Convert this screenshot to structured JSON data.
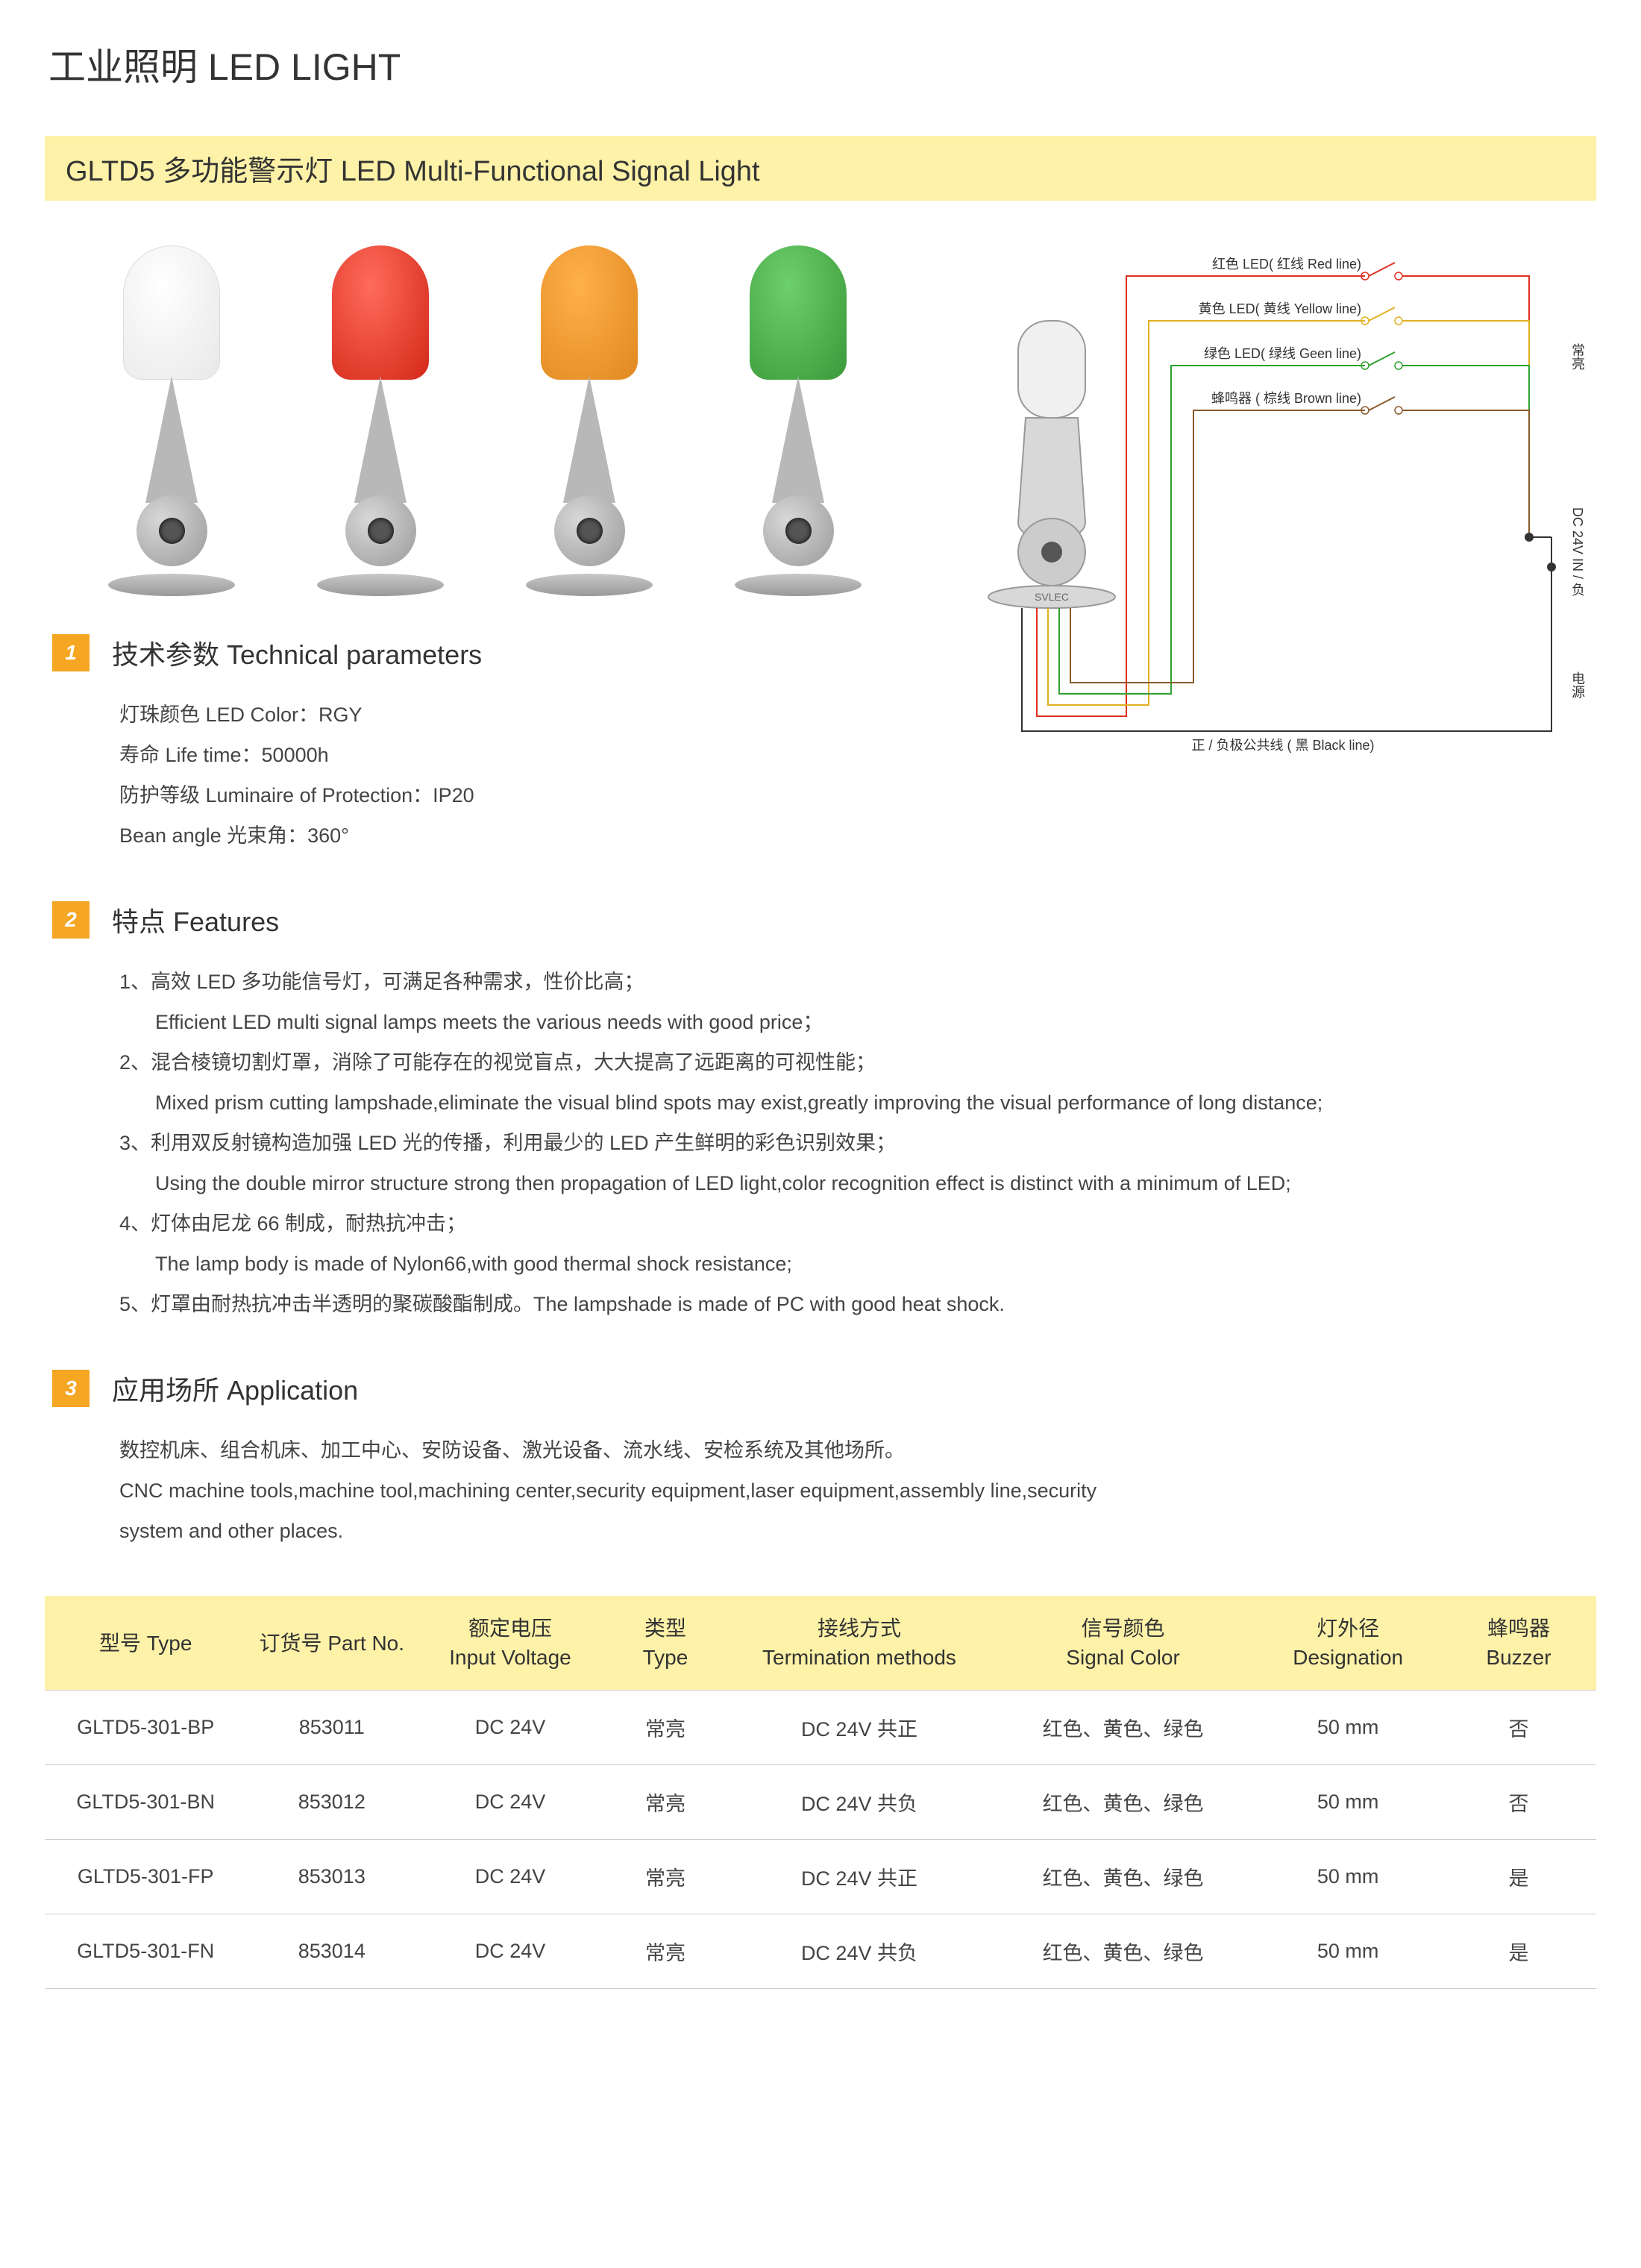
{
  "page_title": "工业照明  LED LIGHT",
  "section_title": "GLTD5 多功能警示灯  LED Multi-Functional Signal Light",
  "product_lights": [
    {
      "dome_class": "dome-white"
    },
    {
      "dome_class": "dome-red"
    },
    {
      "dome_class": "dome-orange"
    },
    {
      "dome_class": "dome-green"
    }
  ],
  "wiring": {
    "light_fill": "#f0f0f0",
    "light_stroke": "#999999",
    "base_fill": "#d8d8d8",
    "knuckle_fill": "#cccccc",
    "knuckle_hole": "#555555",
    "logo": "SVLEC",
    "black_line_color": "#333333",
    "red_color": "#e03020",
    "yellow_color": "#e0b020",
    "green_color": "#30a030",
    "brown_color": "#8b5a2b",
    "label_red": "红色 LED( 红线 Red line)",
    "label_yellow": "黄色 LED( 黄线 Yellow line)",
    "label_green": "绿色 LED( 绿线 Geen line)",
    "label_brown": "蜂鸣器 ( 棕线 Brown line)",
    "label_black": "正 / 负极公共线 ( 黑 Black line)",
    "label_right_side_1": "常亮",
    "label_right_side_2": "DC 24V IN / 负",
    "label_right_side_3": "电源",
    "label_fontsize": 18,
    "line_width": 2
  },
  "sections": {
    "tech": {
      "badge": "1",
      "title": "技术参数 Technical parameters",
      "items": [
        "灯珠颜色 LED Color：RGY",
        "寿命 Life time：50000h",
        "防护等级 Luminaire of Protection：IP20",
        "Bean angle 光束角：360°"
      ]
    },
    "features": {
      "badge": "2",
      "title": "特点 Features",
      "items": [
        {
          "cn": "1、高效 LED 多功能信号灯，可满足各种需求，性价比高；",
          "en": "Efficient LED multi signal lamps meets the various needs with good price；"
        },
        {
          "cn": "2、混合棱镜切割灯罩，消除了可能存在的视觉盲点，大大提高了远距离的可视性能；",
          "en": "Mixed prism cutting lampshade,eliminate the visual blind spots may exist,greatly improving the visual performance of long distance;"
        },
        {
          "cn": "3、利用双反射镜构造加强 LED 光的传播，利用最少的 LED 产生鲜明的彩色识别效果；",
          "en": "Using the double mirror structure strong then propagation of LED light,color recognition effect is distinct with a minimum of LED;"
        },
        {
          "cn": "4、灯体由尼龙 66 制成，耐热抗冲击；",
          "en": "The lamp body is made of Nylon66,with good thermal shock resistance;"
        },
        {
          "cn": "5、灯罩由耐热抗冲击半透明的聚碳酸酯制成。The lampshade is made of PC with good heat shock.",
          "en": ""
        }
      ]
    },
    "application": {
      "badge": "3",
      "title": "应用场所 Application",
      "lines": [
        "数控机床、组合机床、加工中心、安防设备、激光设备、流水线、安检系统及其他场所。",
        "CNC machine tools,machine tool,machining center,security equipment,laser equipment,assembly line,security",
        "system and other places."
      ]
    }
  },
  "table": {
    "columns": [
      {
        "cn": "型号 Type",
        "en": ""
      },
      {
        "cn": "订货号 Part No.",
        "en": ""
      },
      {
        "cn": "额定电压",
        "en": "Input Voltage"
      },
      {
        "cn": "类型",
        "en": "Type"
      },
      {
        "cn": "接线方式",
        "en": "Termination methods"
      },
      {
        "cn": "信号颜色",
        "en": "Signal Color"
      },
      {
        "cn": "灯外径",
        "en": "Designation"
      },
      {
        "cn": "蜂鸣器",
        "en": "Buzzer"
      }
    ],
    "col_widths": [
      "13%",
      "11%",
      "12%",
      "8%",
      "17%",
      "17%",
      "12%",
      "10%"
    ],
    "rows": [
      [
        "GLTD5-301-BP",
        "853011",
        "DC 24V",
        "常亮",
        "DC 24V 共正",
        "红色、黄色、绿色",
        "50 mm",
        "否"
      ],
      [
        "GLTD5-301-BN",
        "853012",
        "DC 24V",
        "常亮",
        "DC 24V 共负",
        "红色、黄色、绿色",
        "50 mm",
        "否"
      ],
      [
        "GLTD5-301-FP",
        "853013",
        "DC 24V",
        "常亮",
        "DC 24V 共正",
        "红色、黄色、绿色",
        "50 mm",
        "是"
      ],
      [
        "GLTD5-301-FN",
        "853014",
        "DC 24V",
        "常亮",
        "DC 24V 共负",
        "红色、黄色、绿色",
        "50 mm",
        "是"
      ]
    ],
    "header_bg": "#fdf2a8",
    "border_color": "#cccccc"
  },
  "colors": {
    "badge_bg": "#f5a623",
    "title_bar_bg": "#fdf2a8"
  }
}
